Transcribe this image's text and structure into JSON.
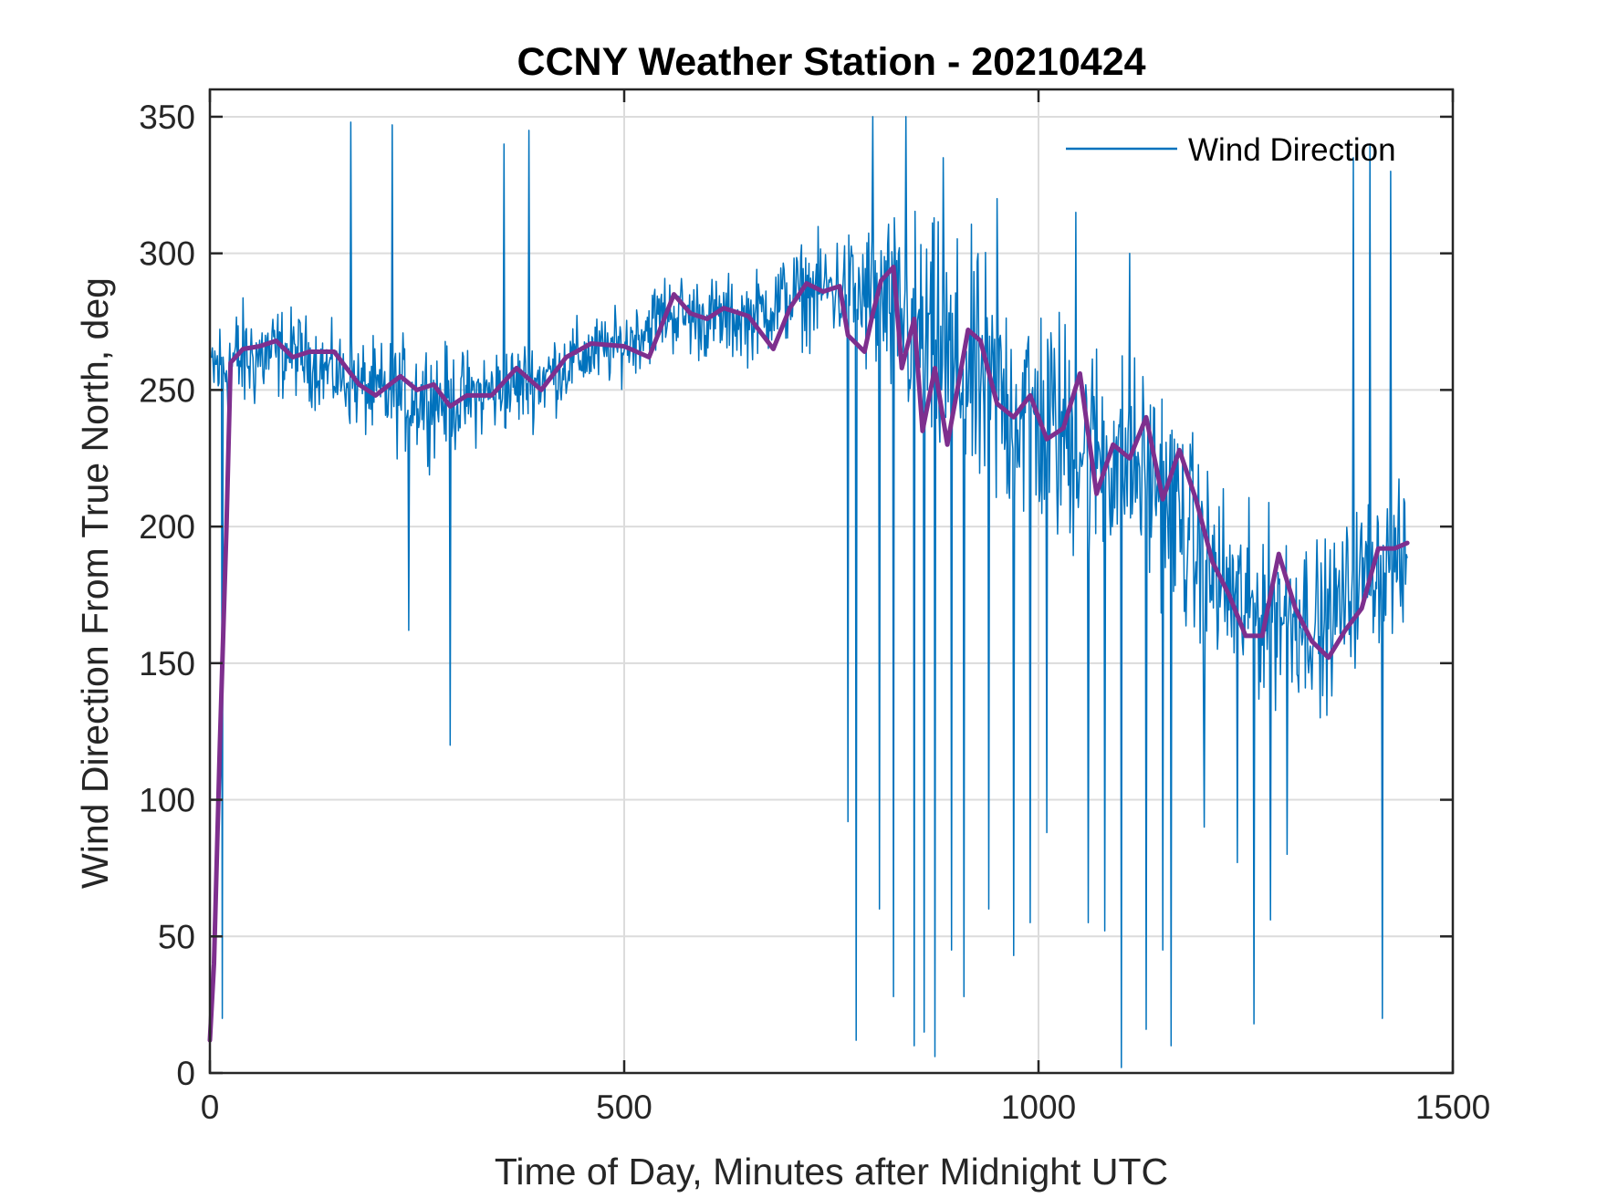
{
  "colors": {
    "raw": "#0072BD",
    "smooth": "#7E2F8E",
    "grid": "#DCDCDC",
    "axis": "#262626"
  },
  "chart_data": {
    "type": "line",
    "title": "CCNY Weather Station - 20210424",
    "xlabel": "Time of Day, Minutes after Midnight UTC",
    "ylabel": "Wind Direction From True North, deg",
    "xlim": [
      0,
      1500
    ],
    "ylim": [
      0,
      360
    ],
    "xticks": [
      0,
      500,
      1000,
      1500
    ],
    "yticks": [
      0,
      50,
      100,
      150,
      200,
      250,
      300,
      350
    ],
    "grid": true,
    "legend": {
      "position": "top-right",
      "entries": [
        "Wind Direction"
      ]
    },
    "series": [
      {
        "name": "Wind Direction",
        "color": "#0072BD",
        "values_approximate": true,
        "envelope": [
          [
            0,
            240,
            275
          ],
          [
            30,
            240,
            280
          ],
          [
            60,
            245,
            280
          ],
          [
            100,
            250,
            278
          ],
          [
            150,
            242,
            270
          ],
          [
            200,
            232,
            265
          ],
          [
            250,
            228,
            268
          ],
          [
            300,
            230,
            262
          ],
          [
            350,
            235,
            265
          ],
          [
            400,
            240,
            268
          ],
          [
            450,
            250,
            275
          ],
          [
            500,
            255,
            278
          ],
          [
            550,
            265,
            292
          ],
          [
            600,
            262,
            290
          ],
          [
            650,
            262,
            290
          ],
          [
            700,
            268,
            300
          ],
          [
            750,
            270,
            305
          ],
          [
            800,
            255,
            310
          ],
          [
            850,
            235,
            310
          ],
          [
            900,
            215,
            300
          ],
          [
            950,
            205,
            290
          ],
          [
            1000,
            200,
            280
          ],
          [
            1050,
            190,
            270
          ],
          [
            1100,
            190,
            260
          ],
          [
            1150,
            180,
            250
          ],
          [
            1200,
            150,
            220
          ],
          [
            1250,
            140,
            200
          ],
          [
            1300,
            140,
            200
          ],
          [
            1350,
            140,
            190
          ],
          [
            1400,
            160,
            210
          ],
          [
            1440,
            165,
            210
          ]
        ],
        "spikes": [
          [
            15,
            20
          ],
          [
            170,
            348
          ],
          [
            220,
            347
          ],
          [
            240,
            162
          ],
          [
            290,
            120
          ],
          [
            355,
            340
          ],
          [
            385,
            345
          ],
          [
            770,
            92
          ],
          [
            780,
            12
          ],
          [
            800,
            350
          ],
          [
            808,
            60
          ],
          [
            825,
            28
          ],
          [
            840,
            350
          ],
          [
            850,
            10
          ],
          [
            862,
            15
          ],
          [
            875,
            6
          ],
          [
            885,
            335
          ],
          [
            895,
            45
          ],
          [
            910,
            28
          ],
          [
            940,
            60
          ],
          [
            950,
            320
          ],
          [
            970,
            43
          ],
          [
            990,
            55
          ],
          [
            1010,
            88
          ],
          [
            1045,
            315
          ],
          [
            1060,
            55
          ],
          [
            1080,
            52
          ],
          [
            1100,
            2
          ],
          [
            1110,
            300
          ],
          [
            1130,
            16
          ],
          [
            1150,
            45
          ],
          [
            1160,
            10
          ],
          [
            1180,
            190
          ],
          [
            1200,
            90
          ],
          [
            1240,
            77
          ],
          [
            1260,
            18
          ],
          [
            1280,
            56
          ],
          [
            1300,
            80
          ],
          [
            1340,
            130
          ],
          [
            1380,
            335
          ],
          [
            1400,
            340
          ],
          [
            1415,
            20
          ],
          [
            1425,
            330
          ],
          [
            1440,
            165
          ]
        ]
      },
      {
        "name": "",
        "color": "#7E2F8E",
        "x": [
          0,
          5,
          12,
          20,
          25,
          40,
          60,
          80,
          100,
          120,
          150,
          180,
          200,
          230,
          250,
          270,
          290,
          310,
          340,
          370,
          400,
          430,
          460,
          500,
          530,
          560,
          580,
          600,
          620,
          650,
          680,
          700,
          720,
          740,
          760,
          770,
          790,
          800,
          810,
          825,
          835,
          850,
          860,
          875,
          890,
          905,
          915,
          930,
          950,
          970,
          990,
          1010,
          1030,
          1050,
          1070,
          1090,
          1110,
          1130,
          1150,
          1170,
          1190,
          1210,
          1230,
          1250,
          1270,
          1290,
          1310,
          1330,
          1350,
          1370,
          1390,
          1410,
          1430,
          1445
        ],
        "y": [
          12,
          40,
          120,
          200,
          260,
          265,
          266,
          268,
          262,
          264,
          264,
          252,
          248,
          255,
          250,
          252,
          244,
          248,
          248,
          258,
          250,
          262,
          267,
          266,
          262,
          285,
          278,
          276,
          280,
          277,
          265,
          280,
          289,
          286,
          288,
          270,
          264,
          278,
          290,
          295,
          258,
          276,
          235,
          258,
          230,
          255,
          272,
          268,
          245,
          240,
          248,
          232,
          236,
          256,
          212,
          230,
          225,
          240,
          210,
          228,
          210,
          187,
          175,
          160,
          160,
          190,
          170,
          158,
          152,
          162,
          170,
          192,
          192,
          194
        ]
      }
    ]
  }
}
